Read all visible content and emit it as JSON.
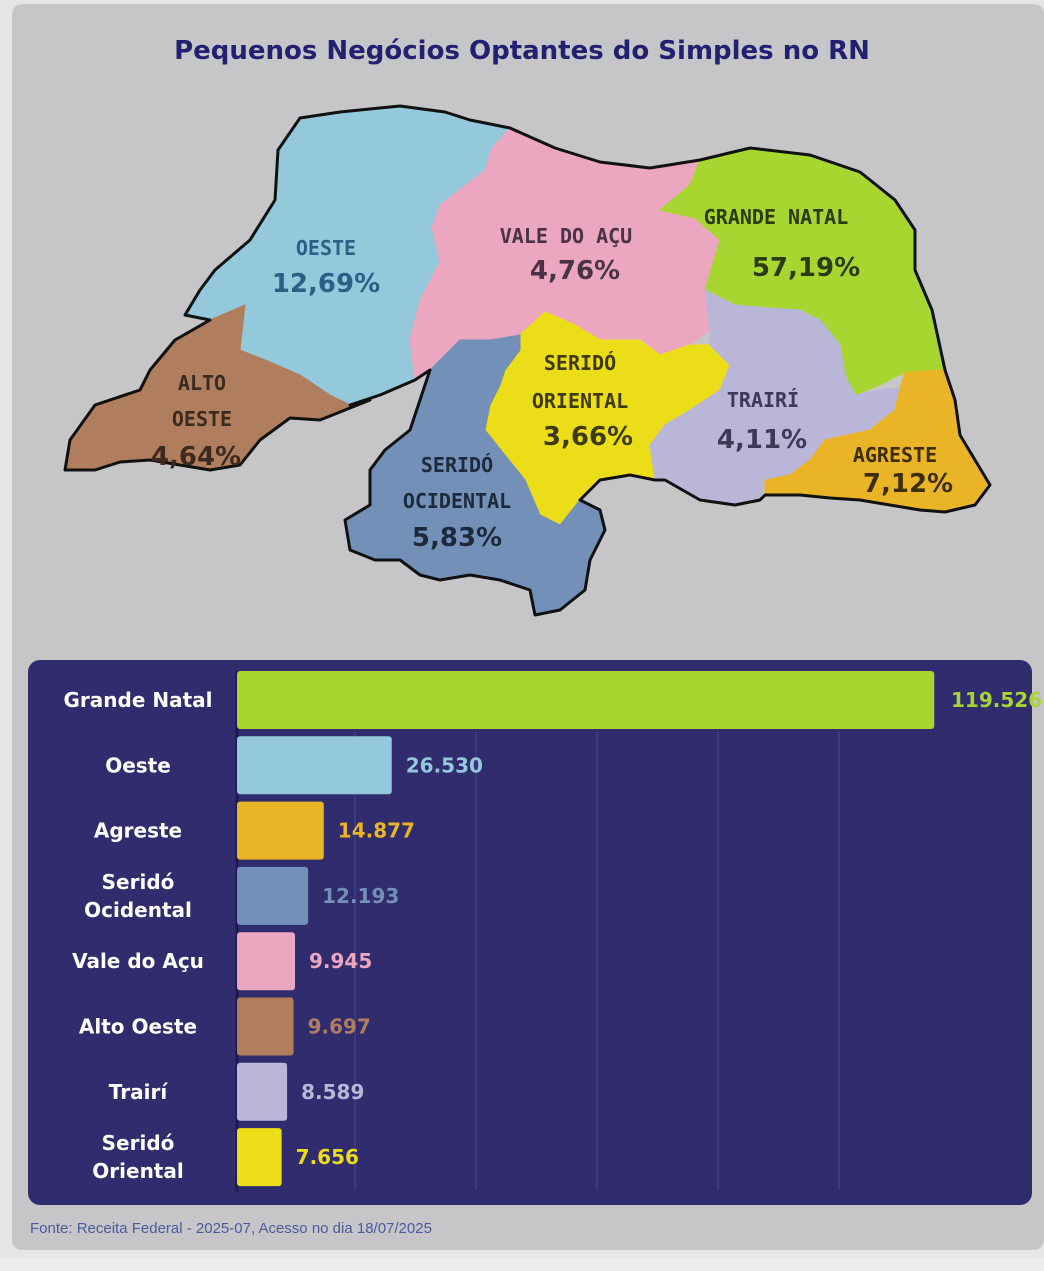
{
  "title": "Pequenos Negócios Optantes do Simples no RN",
  "source": "Fonte: Receita Federal - 2025-07, Acesso no dia 18/07/2025",
  "map_regions": [
    {
      "id": "oeste",
      "name_lines": [
        "OESTE"
      ],
      "pct": "12,69%",
      "fill": "#93c9da",
      "text_color": "#2c5f86"
    },
    {
      "id": "vale-do-acu",
      "name_lines": [
        "VALE DO AÇU"
      ],
      "pct": "4,76%",
      "fill": "#eba6c0",
      "text_color": "#4a3346"
    },
    {
      "id": "grande-natal",
      "name_lines": [
        "GRANDE NATAL"
      ],
      "pct": "57,19%",
      "fill": "#a8d630",
      "text_color": "#2d3b12"
    },
    {
      "id": "alto-oeste",
      "name_lines": [
        "ALTO",
        "OESTE"
      ],
      "pct": "4,64%",
      "fill": "#b07e5e",
      "text_color": "#3b2a1d"
    },
    {
      "id": "serido-oriental",
      "name_lines": [
        "SERIDÓ",
        "ORIENTAL"
      ],
      "pct": "3,66%",
      "fill": "#ebde18",
      "text_color": "#3f3a10"
    },
    {
      "id": "trairi",
      "name_lines": [
        "TRAIRÍ"
      ],
      "pct": "4,11%",
      "fill": "#b9b6d8",
      "text_color": "#3c3a55"
    },
    {
      "id": "agreste",
      "name_lines": [
        "AGRESTE"
      ],
      "pct": "7,12%",
      "fill": "#e9b526",
      "text_color": "#3d2e08"
    },
    {
      "id": "serido-ocidental",
      "name_lines": [
        "SERIDÓ",
        "OCIDENTAL"
      ],
      "pct": "5,83%",
      "fill": "#7290b8",
      "text_color": "#1e2a3c"
    }
  ],
  "chart_data": {
    "type": "bar",
    "orientation": "horizontal",
    "categories": [
      "Grande Natal",
      "Oeste",
      "Agreste",
      "Seridó Ocidental",
      "Vale do Açu",
      "Alto Oeste",
      "Trairí",
      "Seridó Oriental"
    ],
    "category_lines": [
      [
        "Grande Natal"
      ],
      [
        "Oeste"
      ],
      [
        "Agreste"
      ],
      [
        "Seridó",
        "Ocidental"
      ],
      [
        "Vale do Açu"
      ],
      [
        "Alto Oeste"
      ],
      [
        "Trairí"
      ],
      [
        "Seridó",
        "Oriental"
      ]
    ],
    "values": [
      119526,
      26530,
      14877,
      12193,
      9945,
      9697,
      8589,
      7656
    ],
    "value_labels": [
      "119.526",
      "26.530",
      "14.877",
      "12.193",
      "9.945",
      "9.697",
      "8.589",
      "7.656"
    ],
    "colors": [
      "#a8d630",
      "#93c9da",
      "#e9b526",
      "#7290b8",
      "#eba6c0",
      "#b07e5e",
      "#b9b6d8",
      "#ebde18"
    ],
    "value_colors": [
      "#a8d630",
      "#93c9da",
      "#e9b526",
      "#7290b8",
      "#eba6c0",
      "#b07e5e",
      "#b9b6d8",
      "#ebde18"
    ],
    "xlim": [
      0,
      120000
    ],
    "grid": true,
    "background": "#302c6e"
  }
}
